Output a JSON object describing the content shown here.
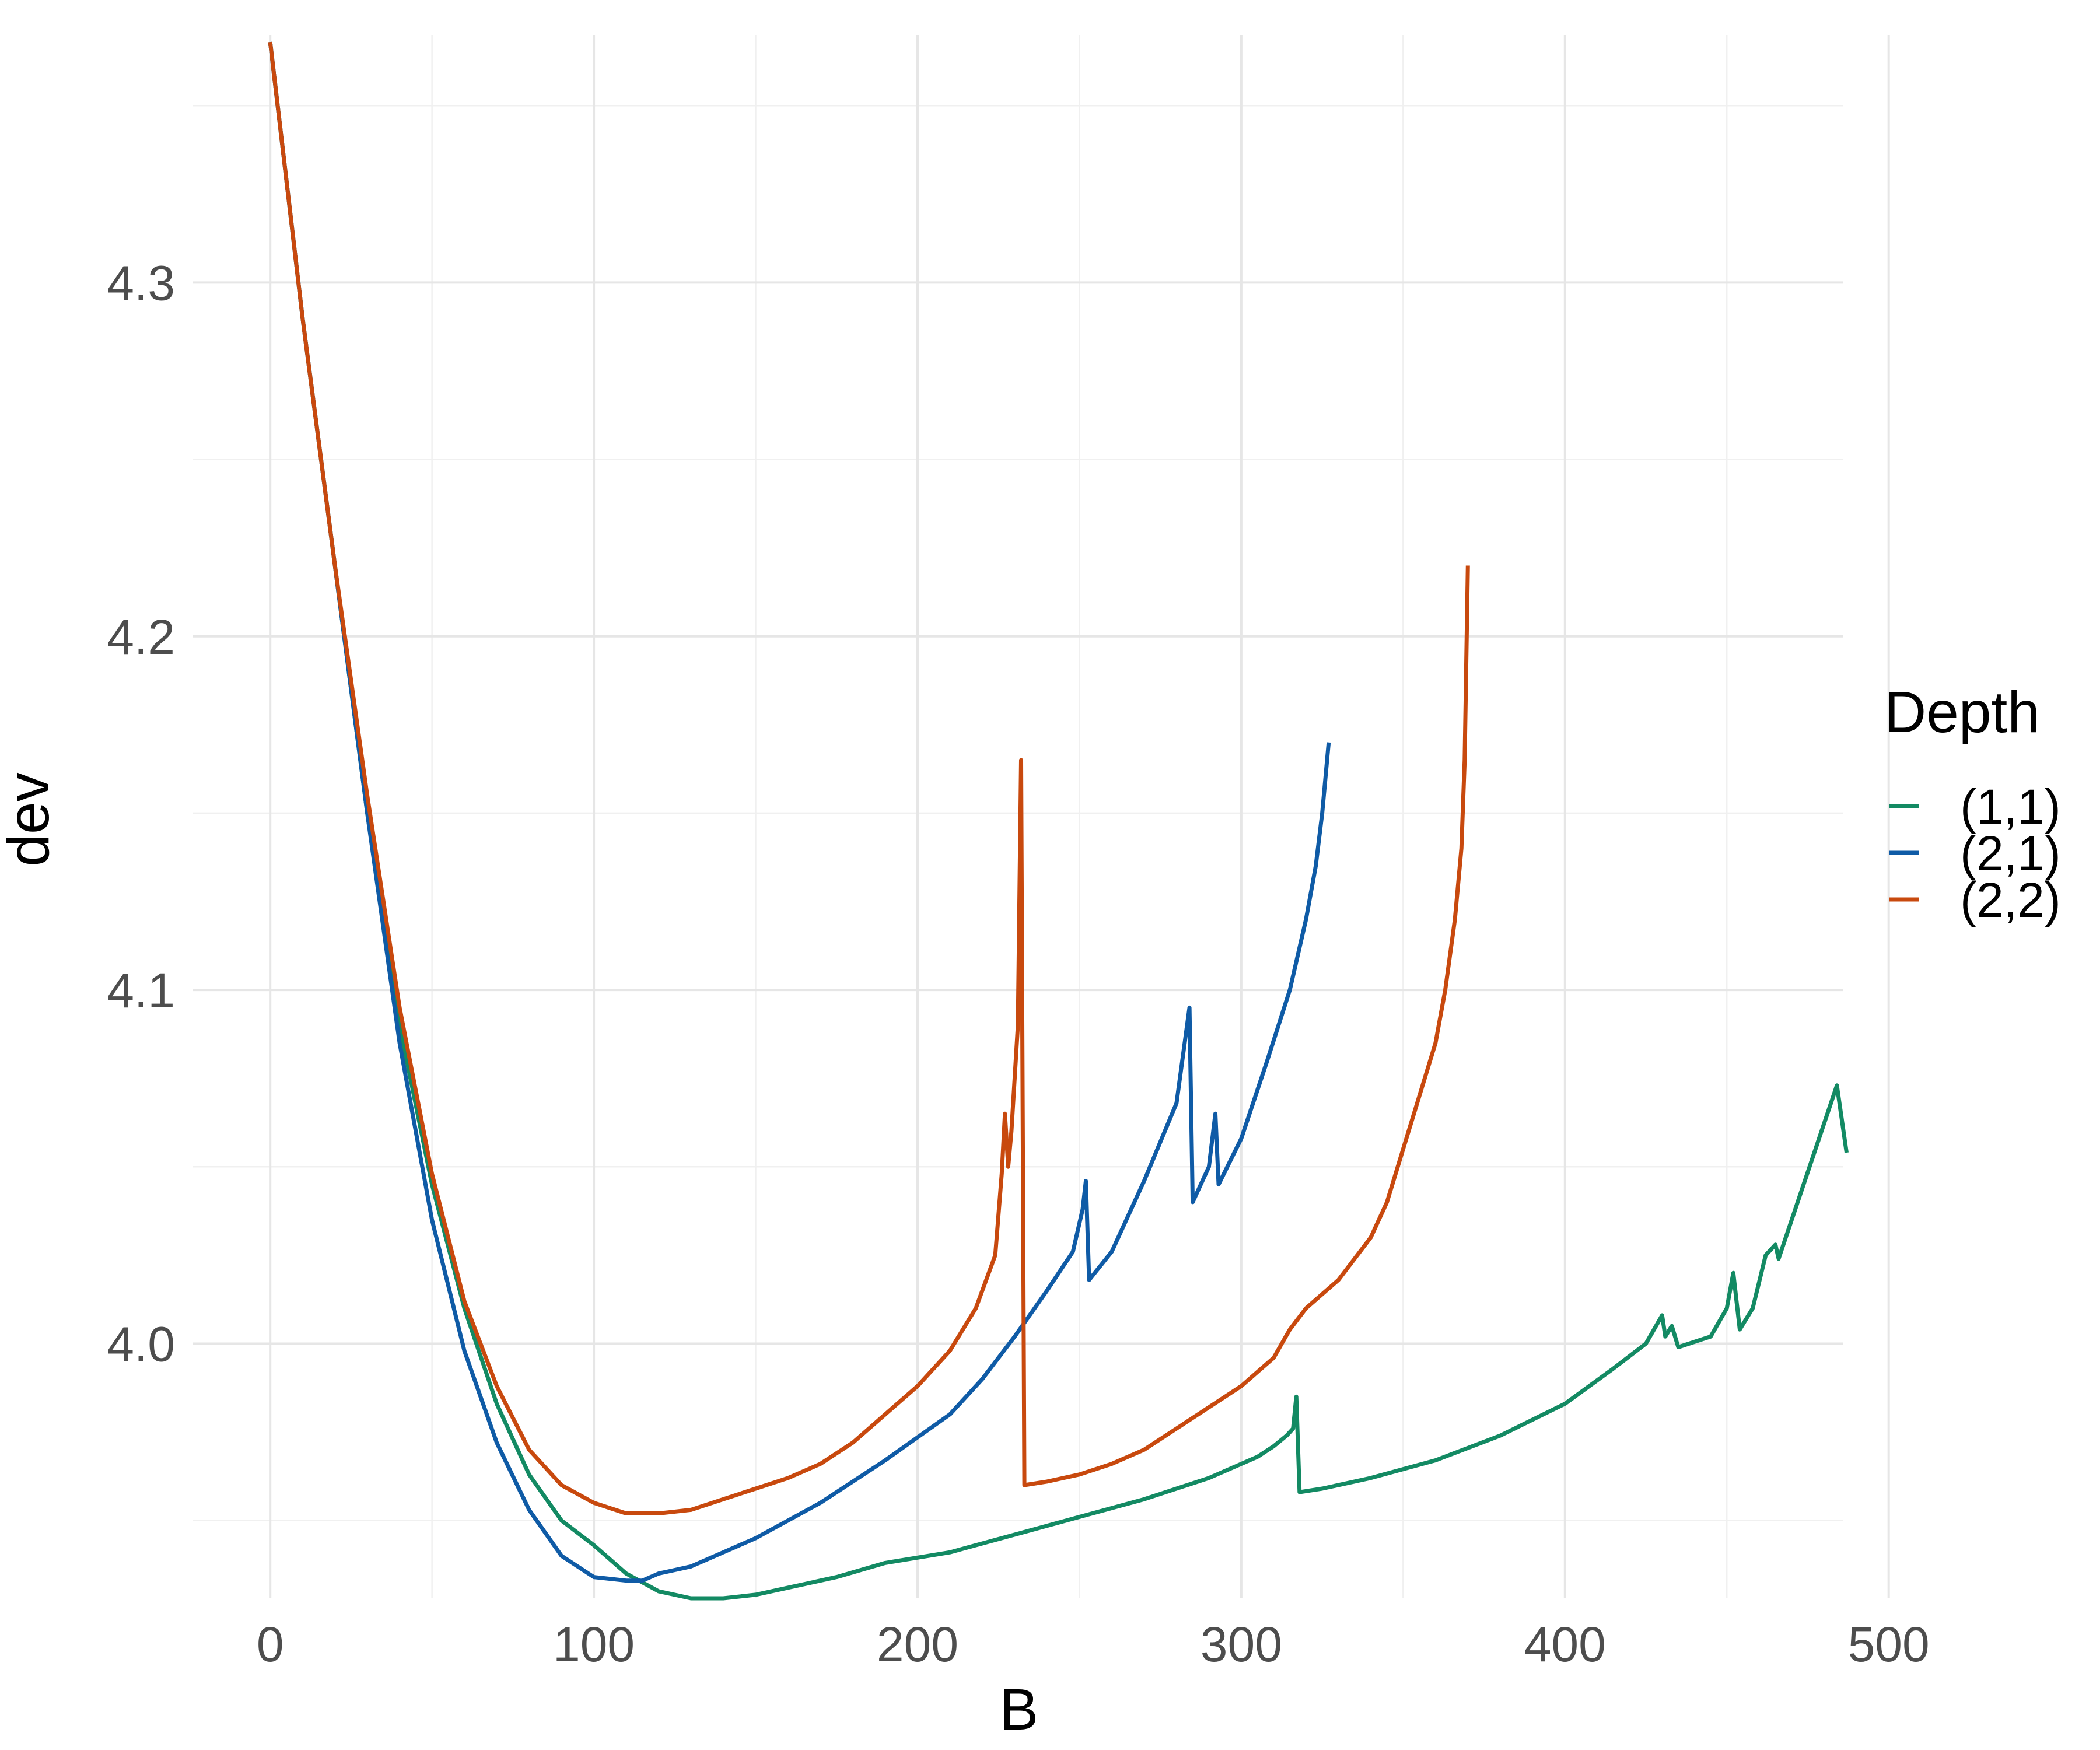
{
  "chart_data": {
    "type": "line",
    "title": "",
    "xlabel": "B",
    "ylabel": "dev",
    "xlim": [
      -24,
      486
    ],
    "ylim": [
      3.928,
      4.37
    ],
    "x_ticks": [
      0,
      100,
      200,
      300,
      400,
      500
    ],
    "x_tick_labels": [
      "0",
      "100",
      "200",
      "300",
      "400",
      "500"
    ],
    "y_ticks": [
      4.0,
      4.1,
      4.2,
      4.3
    ],
    "y_tick_labels": [
      "4.0",
      "4.1",
      "4.2",
      "4.3"
    ],
    "grid": true,
    "legend": {
      "title": "Depth",
      "position": "right"
    },
    "series": [
      {
        "name": "(1,1)",
        "color": "#138A63",
        "points": [
          [
            0,
            4.368
          ],
          [
            10,
            4.29
          ],
          [
            20,
            4.22
          ],
          [
            30,
            4.15
          ],
          [
            40,
            4.09
          ],
          [
            50,
            4.045
          ],
          [
            60,
            4.01
          ],
          [
            70,
            3.983
          ],
          [
            80,
            3.963
          ],
          [
            90,
            3.95
          ],
          [
            100,
            3.943
          ],
          [
            110,
            3.935
          ],
          [
            120,
            3.93
          ],
          [
            130,
            3.928
          ],
          [
            140,
            3.928
          ],
          [
            150,
            3.929
          ],
          [
            160,
            3.931
          ],
          [
            175,
            3.934
          ],
          [
            190,
            3.938
          ],
          [
            210,
            3.941
          ],
          [
            230,
            3.946
          ],
          [
            250,
            3.951
          ],
          [
            270,
            3.956
          ],
          [
            290,
            3.962
          ],
          [
            300,
            3.966
          ],
          [
            305,
            3.968
          ],
          [
            310,
            3.971
          ],
          [
            314,
            3.974
          ],
          [
            316,
            3.976
          ],
          [
            317,
            3.985
          ],
          [
            318,
            3.958
          ],
          [
            325,
            3.959
          ],
          [
            340,
            3.962
          ],
          [
            360,
            3.967
          ],
          [
            380,
            3.974
          ],
          [
            400,
            3.983
          ],
          [
            415,
            3.993
          ],
          [
            425,
            4.0
          ],
          [
            430,
            4.008
          ],
          [
            431,
            4.002
          ],
          [
            433,
            4.005
          ],
          [
            435,
            3.999
          ],
          [
            445,
            4.002
          ],
          [
            450,
            4.01
          ],
          [
            452,
            4.02
          ],
          [
            454,
            4.004
          ],
          [
            458,
            4.01
          ],
          [
            462,
            4.025
          ],
          [
            465,
            4.028
          ],
          [
            466,
            4.024
          ],
          [
            484,
            4.073
          ],
          [
            487,
            4.054
          ]
        ]
      },
      {
        "name": "(2,1)",
        "color": "#0F5BA6",
        "points": [
          [
            0,
            4.368
          ],
          [
            10,
            4.29
          ],
          [
            20,
            4.22
          ],
          [
            30,
            4.15
          ],
          [
            40,
            4.085
          ],
          [
            50,
            4.035
          ],
          [
            60,
            3.998
          ],
          [
            70,
            3.972
          ],
          [
            80,
            3.953
          ],
          [
            90,
            3.94
          ],
          [
            100,
            3.934
          ],
          [
            110,
            3.933
          ],
          [
            115,
            3.933
          ],
          [
            120,
            3.935
          ],
          [
            130,
            3.937
          ],
          [
            140,
            3.941
          ],
          [
            150,
            3.945
          ],
          [
            170,
            3.955
          ],
          [
            190,
            3.967
          ],
          [
            210,
            3.98
          ],
          [
            220,
            3.99
          ],
          [
            230,
            4.002
          ],
          [
            240,
            4.015
          ],
          [
            248,
            4.026
          ],
          [
            251,
            4.038
          ],
          [
            252,
            4.046
          ],
          [
            253,
            4.018
          ],
          [
            260,
            4.026
          ],
          [
            270,
            4.046
          ],
          [
            280,
            4.068
          ],
          [
            284,
            4.095
          ],
          [
            285,
            4.04
          ],
          [
            290,
            4.05
          ],
          [
            292,
            4.065
          ],
          [
            293,
            4.045
          ],
          [
            300,
            4.058
          ],
          [
            308,
            4.08
          ],
          [
            315,
            4.1
          ],
          [
            320,
            4.12
          ],
          [
            323,
            4.135
          ],
          [
            325,
            4.15
          ],
          [
            327,
            4.17
          ]
        ]
      },
      {
        "name": "(2,2)",
        "color": "#C8490E",
        "points": [
          [
            0,
            4.368
          ],
          [
            10,
            4.29
          ],
          [
            20,
            4.22
          ],
          [
            30,
            4.155
          ],
          [
            40,
            4.095
          ],
          [
            50,
            4.048
          ],
          [
            60,
            4.012
          ],
          [
            70,
            3.988
          ],
          [
            80,
            3.97
          ],
          [
            90,
            3.96
          ],
          [
            100,
            3.955
          ],
          [
            110,
            3.952
          ],
          [
            120,
            3.952
          ],
          [
            130,
            3.953
          ],
          [
            140,
            3.956
          ],
          [
            150,
            3.959
          ],
          [
            160,
            3.962
          ],
          [
            170,
            3.966
          ],
          [
            180,
            3.972
          ],
          [
            190,
            3.98
          ],
          [
            200,
            3.988
          ],
          [
            210,
            3.998
          ],
          [
            218,
            4.01
          ],
          [
            224,
            4.025
          ],
          [
            226,
            4.048
          ],
          [
            227,
            4.065
          ],
          [
            228,
            4.05
          ],
          [
            229,
            4.06
          ],
          [
            231,
            4.09
          ],
          [
            232,
            4.165
          ],
          [
            233,
            3.96
          ],
          [
            240,
            3.961
          ],
          [
            250,
            3.963
          ],
          [
            260,
            3.966
          ],
          [
            270,
            3.97
          ],
          [
            280,
            3.976
          ],
          [
            290,
            3.982
          ],
          [
            300,
            3.988
          ],
          [
            310,
            3.996
          ],
          [
            315,
            4.004
          ],
          [
            320,
            4.01
          ],
          [
            330,
            4.018
          ],
          [
            340,
            4.03
          ],
          [
            345,
            4.04
          ],
          [
            350,
            4.055
          ],
          [
            355,
            4.07
          ],
          [
            360,
            4.085
          ],
          [
            363,
            4.1
          ],
          [
            366,
            4.12
          ],
          [
            368,
            4.14
          ],
          [
            369,
            4.165
          ],
          [
            370,
            4.22
          ]
        ]
      }
    ]
  }
}
